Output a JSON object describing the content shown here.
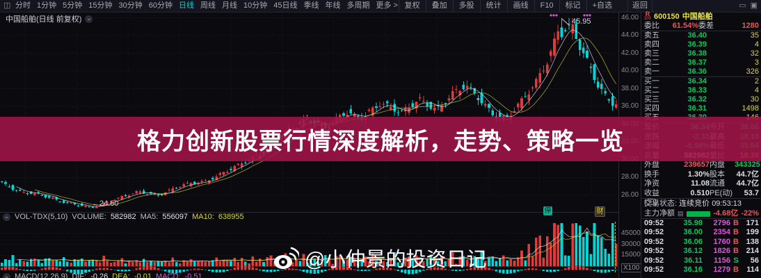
{
  "toolbar": {
    "app_icon": "◫",
    "periods": [
      {
        "label": "分时",
        "c": ""
      },
      {
        "label": "1分钟",
        "c": ""
      },
      {
        "label": "5分钟",
        "c": ""
      },
      {
        "label": "15分钟",
        "c": ""
      },
      {
        "label": "30分钟",
        "c": ""
      },
      {
        "label": "60分钟",
        "c": ""
      },
      {
        "label": "日线",
        "c": "active"
      },
      {
        "label": "周线",
        "c": ""
      },
      {
        "label": "月线",
        "c": ""
      },
      {
        "label": "10分钟",
        "c": ""
      },
      {
        "label": "45日线",
        "c": ""
      },
      {
        "label": "季线",
        "c": ""
      },
      {
        "label": "年线",
        "c": ""
      },
      {
        "label": "多周期",
        "c": ""
      },
      {
        "label": "更多 >",
        "c": ""
      }
    ],
    "tools": [
      "复权",
      "叠加",
      "多股",
      "统计",
      "画线",
      "F10",
      "标记",
      "+自选"
    ],
    "back_label": "返回",
    "window_icons": [
      "▭",
      "▣"
    ]
  },
  "chart": {
    "title": "中国船舶(日线 前复权)",
    "collapse_icon": "⌄",
    "high_annotation": "45.95",
    "low_annotation": "←24.60",
    "badge_suspend": "停",
    "badge_report": "财",
    "vol_header": {
      "indicator": "VOL-TDX(5,10)",
      "volume_label": "VOLUME:",
      "volume": "582982",
      "ma5_label": "MA5:",
      "ma5": "556097",
      "ma10_label": "MA10:",
      "ma10": "638955"
    },
    "macd_footer": {
      "indicator": "MACD(12,26,9)",
      "dif_label": "DIF:",
      "dif": "-0.26",
      "dea_label": "DEA:",
      "dea": "-0.01",
      "macd_label": "MACD:",
      "macd": "-0.51"
    }
  },
  "chart_data": {
    "type": "candlestick",
    "symbol": "600150 中国船舶",
    "period": "日线 前复权",
    "price_range": [
      26,
      46
    ],
    "price_gridlines": [
      26,
      28,
      30,
      32,
      34,
      36,
      38,
      40,
      42,
      44,
      46
    ],
    "price_axis_labels": [
      "46.00",
      "44.00",
      "42.00",
      "40.00",
      "38.00",
      "36.00",
      "34.00",
      "32.00",
      "30.00",
      "28.00",
      "26.00"
    ],
    "low": 24.6,
    "high": 45.95,
    "last_price": 36.34,
    "anchors": [
      [
        0,
        27.6
      ],
      [
        30,
        26.4
      ],
      [
        60,
        26.1
      ],
      [
        90,
        25.3
      ],
      [
        135,
        24.6
      ],
      [
        170,
        25.6
      ],
      [
        200,
        26.4
      ],
      [
        230,
        26.0
      ],
      [
        265,
        27.2
      ],
      [
        300,
        27.6
      ],
      [
        340,
        29.2
      ],
      [
        380,
        30.8
      ],
      [
        415,
        33.2
      ],
      [
        445,
        34.6
      ],
      [
        470,
        33.6
      ],
      [
        500,
        35.4
      ],
      [
        520,
        34.6
      ],
      [
        550,
        36.4
      ],
      [
        580,
        35.3
      ],
      [
        605,
        36.8
      ],
      [
        630,
        35.6
      ],
      [
        655,
        37.6
      ],
      [
        672,
        38.4
      ],
      [
        690,
        37.0
      ],
      [
        712,
        35.0
      ],
      [
        730,
        34.6
      ],
      [
        752,
        36.6
      ],
      [
        772,
        38.6
      ],
      [
        790,
        41.2
      ],
      [
        802,
        43.8
      ],
      [
        808,
        45.3
      ],
      [
        816,
        44.6
      ],
      [
        824,
        45.2
      ],
      [
        836,
        42.8
      ],
      [
        852,
        40.2
      ],
      [
        862,
        38.4
      ],
      [
        872,
        37.2
      ],
      [
        884,
        36.3
      ]
    ],
    "volume_range": [
      0,
      60000
    ],
    "volume_gridlines": [
      15000,
      30000,
      45000
    ],
    "volume_axis_labels": [
      "45000",
      "30000",
      "15000"
    ],
    "volume_unit": "X100",
    "volume_current": 582982,
    "grid": true
  },
  "banner": {
    "text": "格力创新股票行情深度解析，走势、策略一览"
  },
  "watermark": {
    "handle": "@小仲景的投资日记"
  },
  "panel": {
    "stock": {
      "flag": "R",
      "flag_sub": "300",
      "code": "600150",
      "name": "中国船舶"
    },
    "weibi": {
      "label": "委比",
      "value": "61.54%",
      "label2": "委差",
      "value2": "1280"
    },
    "asks": [
      {
        "label": "卖五",
        "price": "36.40",
        "qty": "35"
      },
      {
        "label": "卖四",
        "price": "36.39",
        "qty": "4"
      },
      {
        "label": "卖三",
        "price": "36.38",
        "qty": "32"
      },
      {
        "label": "卖二",
        "price": "36.37",
        "qty": "3"
      },
      {
        "label": "卖一",
        "price": "36.36",
        "qty": "326"
      }
    ],
    "bids": [
      {
        "label": "买一",
        "price": "36.34",
        "qty": "2"
      },
      {
        "label": "买二",
        "price": "36.33",
        "qty": "4"
      },
      {
        "label": "买三",
        "price": "36.32",
        "qty": "30"
      },
      {
        "label": "买四",
        "price": "36.31",
        "qty": "1498"
      },
      {
        "label": "买五",
        "price": "36.30",
        "qty": "146"
      }
    ],
    "stats": [
      {
        "l1": "现价",
        "v1": "36.34",
        "c1": "g",
        "l2": "今开",
        "v2": "38.06",
        "c2": "g"
      },
      {
        "l1": "涨跌",
        "v1": "-2.31",
        "c1": "g",
        "l2": "最高",
        "v2": "38.10",
        "c2": "g"
      },
      {
        "l1": "涨幅",
        "v1": "-5.98%",
        "c1": "g",
        "l2": "最低",
        "v2": "35.94",
        "c2": "g"
      },
      {
        "l1": "总量",
        "v1": "582982",
        "c1": "w",
        "l2": "量比",
        "v2": "10.39",
        "c2": "o"
      },
      {
        "l1": "外盘",
        "v1": "239657",
        "c1": "r",
        "l2": "内盘",
        "v2": "343325",
        "c2": "g"
      },
      {
        "l1": "换手",
        "v1": "1.30%",
        "c1": "w",
        "l2": "股本",
        "v2": "44.7亿",
        "c2": "w"
      },
      {
        "l1": "净资",
        "v1": "11.08",
        "c1": "w",
        "l2": "流通",
        "v2": "44.7亿",
        "c2": "w"
      },
      {
        "l1": "收益(三)",
        "v1": "0.510",
        "c1": "w",
        "l2": "PE(动)",
        "v2": "53.7",
        "c2": "w"
      }
    ],
    "status": {
      "label": "交易状态:",
      "value": "连续竞价",
      "time": "09:53:13"
    },
    "main_net": {
      "label": "主力净额",
      "doc_icon": "▤",
      "value": "-4.68亿",
      "pct": "-22%"
    },
    "ticks": [
      {
        "time": "09:52",
        "price": "35.98",
        "vol": "2796",
        "side": "B",
        "side_c": "r",
        "count": "171"
      },
      {
        "time": "09:52",
        "price": "36.00",
        "vol": "2354",
        "side": "B",
        "side_c": "r",
        "count": "199"
      },
      {
        "time": "09:52",
        "price": "36.06",
        "vol": "1760",
        "side": "B",
        "side_c": "r",
        "count": "138"
      },
      {
        "time": "09:52",
        "price": "36.12",
        "vol": "1826",
        "side": "B",
        "side_c": "r",
        "count": "214"
      },
      {
        "time": "09:52",
        "price": "36.11",
        "vol": "1156",
        "side": "S",
        "side_c": "g",
        "count": "56"
      },
      {
        "time": "09:52",
        "price": "36.16",
        "vol": "1279",
        "side": "B",
        "side_c": "r",
        "count": "114"
      }
    ]
  },
  "colors": {
    "up": "#e23a3a",
    "down": "#00d6d6",
    "green": "#00cd5c",
    "red": "#f25252",
    "yellow": "#d8d838",
    "orange": "#e0a030",
    "magenta": "#dd55dd",
    "teal": "#00d2d2",
    "stock_name": "#e6e63c",
    "banner": "#a11448",
    "net_bar": "#00b44a",
    "ma_white": "#e8e8f0",
    "ma_yellow": "#d6d633",
    "current_bar_line": "#c8b43c",
    "axis_text": "#8a8a94"
  }
}
